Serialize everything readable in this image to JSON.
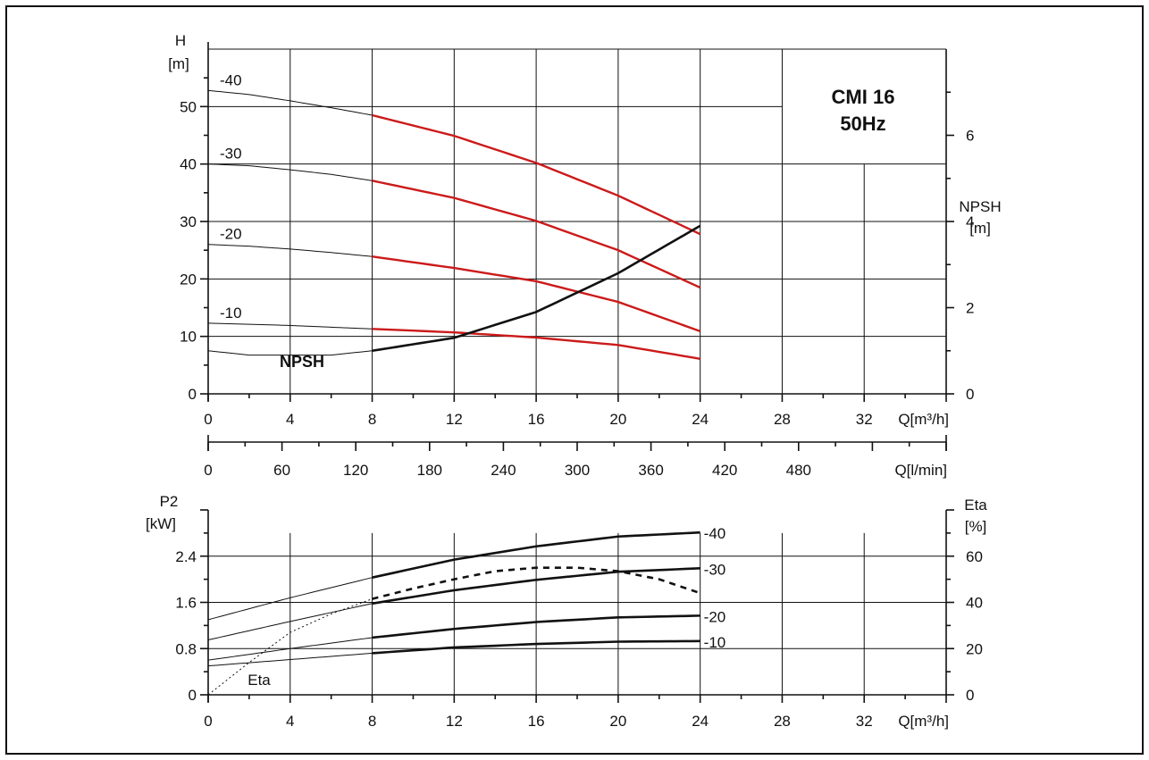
{
  "chart_data": [
    {
      "type": "line",
      "title": "CMI 16",
      "subtitle": "50Hz",
      "ylabel": "H",
      "yunit": "[m]",
      "xlabel": "Q[m³/h]",
      "xlim": [
        0,
        36
      ],
      "ylim": [
        0,
        60
      ],
      "x_ticks": [
        "0",
        "4",
        "8",
        "12",
        "16",
        "20",
        "24",
        "28",
        "32"
      ],
      "y_ticks": [
        "0",
        "10",
        "20",
        "30",
        "40",
        "50"
      ],
      "secondary_x": {
        "label": "Q[l/min]",
        "ticks": [
          "0",
          "60",
          "120",
          "180",
          "240",
          "300",
          "360",
          "420",
          "480"
        ]
      },
      "secondary_y": {
        "label": "NPSH",
        "unit": "[m]",
        "ylim": [
          0,
          8
        ],
        "ticks": [
          "0",
          "2",
          "4",
          "6"
        ]
      },
      "series": [
        {
          "name": "-40",
          "x": [
            0,
            2,
            4,
            6,
            8,
            12,
            16,
            20,
            24
          ],
          "values": [
            52.8,
            52.1,
            51.0,
            49.8,
            48.5,
            44.9,
            40.2,
            34.5,
            27.8
          ],
          "operating_range": [
            8,
            24
          ]
        },
        {
          "name": "-30",
          "x": [
            0,
            2,
            4,
            6,
            8,
            12,
            16,
            20,
            24
          ],
          "values": [
            40.0,
            39.7,
            39.0,
            38.2,
            37.1,
            34.1,
            30.1,
            25.0,
            18.5
          ],
          "operating_range": [
            8,
            24
          ]
        },
        {
          "name": "-20",
          "x": [
            0,
            2,
            4,
            6,
            8,
            12,
            16,
            20,
            24
          ],
          "values": [
            26.0,
            25.7,
            25.2,
            24.6,
            23.9,
            21.9,
            19.6,
            16.0,
            10.9
          ],
          "operating_range": [
            8,
            24
          ]
        },
        {
          "name": "-10",
          "x": [
            0,
            2,
            4,
            6,
            8,
            12,
            16,
            20,
            24
          ],
          "values": [
            12.3,
            12.1,
            11.9,
            11.6,
            11.3,
            10.7,
            9.8,
            8.5,
            6.1
          ],
          "operating_range": [
            8,
            24
          ]
        },
        {
          "name": "NPSH",
          "axis": "secondary",
          "x": [
            0,
            2,
            4,
            6,
            8,
            12,
            16,
            20,
            24
          ],
          "values": [
            1.0,
            0.9,
            0.9,
            0.9,
            1.0,
            1.3,
            1.9,
            2.8,
            3.9
          ],
          "operating_range": [
            8,
            24
          ]
        }
      ]
    },
    {
      "type": "line",
      "ylabel": "P2",
      "yunit": "[kW]",
      "xlabel": "Q[m³/h]",
      "xlim": [
        0,
        36
      ],
      "ylim": [
        0,
        3.2
      ],
      "x_ticks": [
        "0",
        "4",
        "8",
        "12",
        "16",
        "20",
        "24",
        "28",
        "32"
      ],
      "y_ticks": [
        "0",
        "0.8",
        "1.6",
        "2.4"
      ],
      "secondary_y": {
        "label": "Eta",
        "unit": "[%]",
        "ylim": [
          0,
          80
        ],
        "ticks": [
          "0",
          "20",
          "40",
          "60"
        ]
      },
      "series": [
        {
          "name": "-40",
          "x": [
            0,
            4,
            8,
            12,
            16,
            20,
            24
          ],
          "values": [
            1.3,
            1.68,
            2.03,
            2.34,
            2.57,
            2.74,
            2.81
          ],
          "operating_range": [
            8,
            24
          ]
        },
        {
          "name": "-30",
          "x": [
            0,
            4,
            8,
            12,
            16,
            20,
            24
          ],
          "values": [
            0.95,
            1.27,
            1.58,
            1.81,
            1.99,
            2.13,
            2.19
          ],
          "operating_range": [
            8,
            24
          ]
        },
        {
          "name": "-20",
          "x": [
            0,
            4,
            8,
            12,
            16,
            20,
            24
          ],
          "values": [
            0.6,
            0.8,
            0.99,
            1.14,
            1.26,
            1.34,
            1.37
          ],
          "operating_range": [
            8,
            24
          ]
        },
        {
          "name": "-10",
          "x": [
            0,
            4,
            8,
            12,
            16,
            20,
            24
          ],
          "values": [
            0.5,
            0.61,
            0.72,
            0.82,
            0.88,
            0.92,
            0.93
          ],
          "operating_range": [
            8,
            24
          ]
        },
        {
          "name": "Eta",
          "axis": "secondary",
          "x": [
            0,
            2,
            4,
            6,
            8,
            10,
            12,
            14,
            16,
            18,
            20,
            22,
            24
          ],
          "values": [
            0,
            14,
            27,
            35,
            41.5,
            46,
            50,
            53.5,
            55,
            55,
            53.5,
            50,
            44
          ],
          "operating_range": [
            8,
            24
          ]
        }
      ]
    }
  ]
}
